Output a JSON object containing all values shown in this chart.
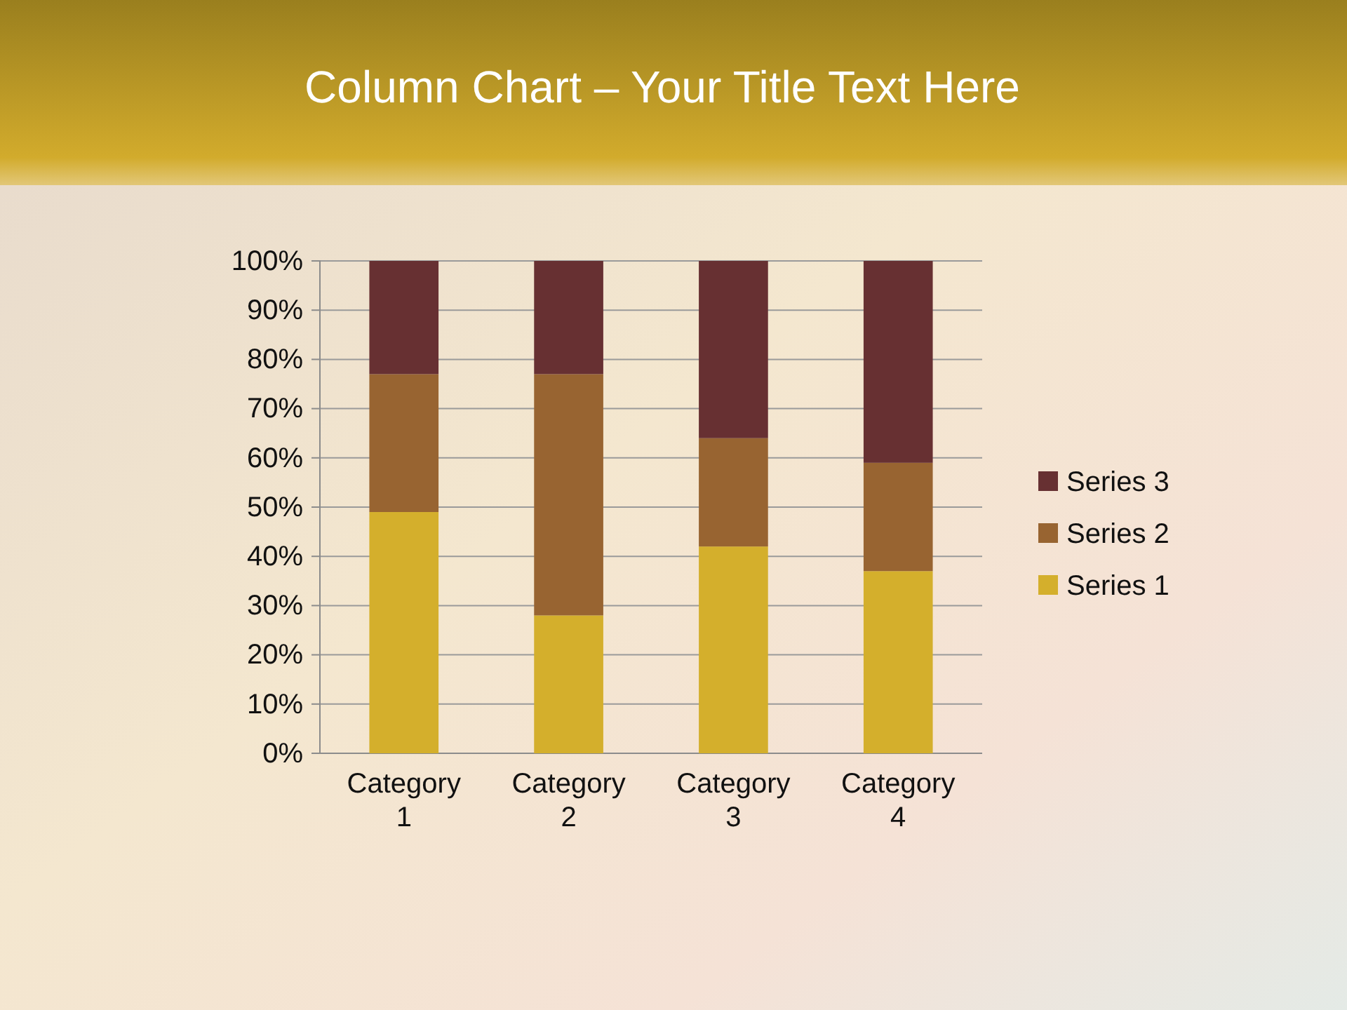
{
  "chart_data": {
    "type": "bar",
    "title": "Column Chart – Your Title Text Here",
    "categories": [
      "Category 1",
      "Category 2",
      "Category 3",
      "Category 4"
    ],
    "series": [
      {
        "name": "Series 1",
        "color": "#d4af2c",
        "values": [
          49,
          28,
          42,
          37
        ]
      },
      {
        "name": "Series 2",
        "color": "#986431",
        "values": [
          28,
          49,
          22,
          22
        ]
      },
      {
        "name": "Series 3",
        "color": "#673032",
        "values": [
          23,
          23,
          36,
          41
        ]
      }
    ],
    "stacked": true,
    "ylim": [
      0,
      100
    ],
    "yticks": [
      {
        "value": 0,
        "label": "0%"
      },
      {
        "value": 10,
        "label": "10%"
      },
      {
        "value": 20,
        "label": "20%"
      },
      {
        "value": 30,
        "label": "30%"
      },
      {
        "value": 40,
        "label": "40%"
      },
      {
        "value": 50,
        "label": "50%"
      },
      {
        "value": 60,
        "label": "60%"
      },
      {
        "value": 70,
        "label": "70%"
      },
      {
        "value": 80,
        "label": "80%"
      },
      {
        "value": 90,
        "label": "90%"
      },
      {
        "value": 100,
        "label": "100%"
      }
    ],
    "grid": "y",
    "legend": "right"
  }
}
